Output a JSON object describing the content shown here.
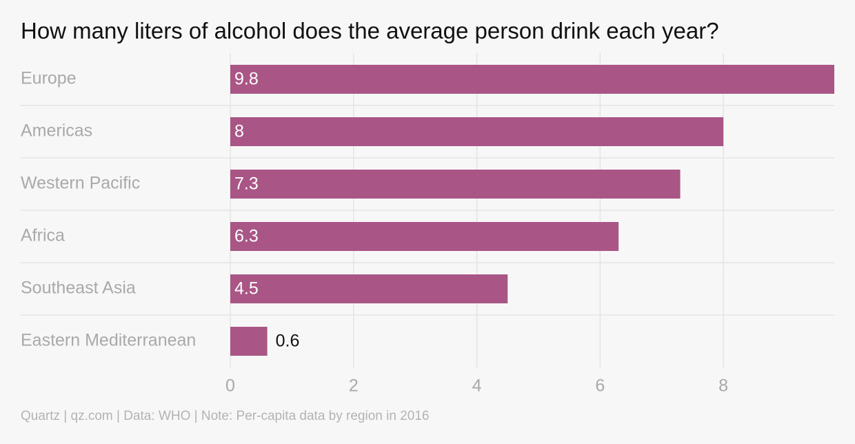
{
  "chart_data": {
    "type": "bar",
    "orientation": "horizontal",
    "title": "How many liters of alcohol does the average person drink each year?",
    "categories": [
      "Europe",
      "Americas",
      "Western Pacific",
      "Africa",
      "Southeast Asia",
      "Eastern Mediterranean"
    ],
    "values": [
      9.8,
      8,
      7.3,
      6.3,
      4.5,
      0.6
    ],
    "value_labels": [
      "9.8",
      "8",
      "7.3",
      "6.3",
      "4.5",
      "0.6"
    ],
    "xlim": [
      0,
      9.8
    ],
    "xticks": [
      0,
      2,
      4,
      6,
      8
    ],
    "xtick_labels": [
      "0",
      "2",
      "4",
      "6",
      "8"
    ],
    "xlabel": "",
    "ylabel": "",
    "grid": true,
    "legend": "none",
    "source": "Quartz | qz.com | Data: WHO | Note: Per-capita data by region in 2016"
  },
  "colors": {
    "bar": "#a95686",
    "background": "#f8f7f7",
    "grid": "#e5e3e3",
    "category_label": "#a9a9a9",
    "tick_label": "#a9a9a9",
    "value_label_inside": "#ffffff",
    "value_label_outside": "#111111",
    "title": "#111111",
    "source": "#b3b3b3"
  }
}
